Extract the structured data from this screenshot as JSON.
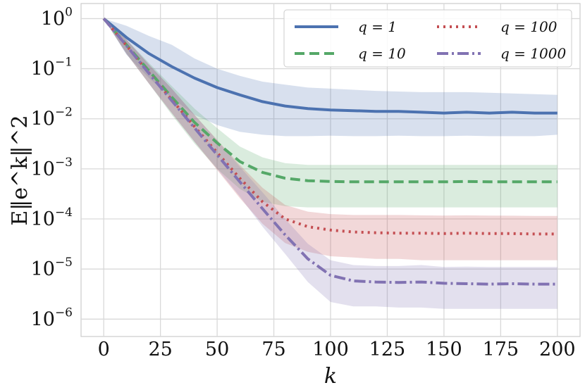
{
  "chart_data": {
    "type": "line",
    "ylabel": "E‖e^k‖^2",
    "xlabel": "k",
    "x_range": [
      -10,
      210
    ],
    "ylim": [
      4.5e-07,
      2.0
    ],
    "yscale": "log",
    "x_ticks": [
      0,
      25,
      50,
      75,
      100,
      125,
      150,
      175,
      200
    ],
    "y_ticks": [
      {
        "value": 1,
        "base": "10",
        "exp": "0"
      },
      {
        "value": 0.1,
        "base": "10",
        "exp": "−1"
      },
      {
        "value": 0.01,
        "base": "10",
        "exp": "−2"
      },
      {
        "value": 0.001,
        "base": "10",
        "exp": "−3"
      },
      {
        "value": 0.0001,
        "base": "10",
        "exp": "−4"
      },
      {
        "value": 1e-05,
        "base": "10",
        "exp": "−5"
      },
      {
        "value": 1e-06,
        "base": "10",
        "exp": "−6"
      }
    ],
    "grid": true,
    "legend_position": "top-right",
    "x": [
      0,
      10,
      20,
      30,
      40,
      50,
      60,
      70,
      80,
      90,
      100,
      110,
      120,
      130,
      140,
      150,
      160,
      170,
      180,
      190,
      200
    ],
    "series": [
      {
        "name": "q = 1",
        "color": "#4c72b0",
        "dash": "solid",
        "mean": [
          1.0,
          0.42,
          0.2,
          0.11,
          0.065,
          0.042,
          0.03,
          0.022,
          0.018,
          0.016,
          0.015,
          0.0145,
          0.014,
          0.014,
          0.0135,
          0.013,
          0.0135,
          0.013,
          0.0135,
          0.013,
          0.013
        ],
        "lower": [
          1.0,
          0.19,
          0.065,
          0.026,
          0.012,
          0.0075,
          0.0055,
          0.0048,
          0.0045,
          0.0045,
          0.0046,
          0.0045,
          0.0045,
          0.0046,
          0.0045,
          0.0045,
          0.0046,
          0.0045,
          0.0045,
          0.0045,
          0.0048
        ],
        "upper": [
          1.0,
          0.72,
          0.45,
          0.3,
          0.16,
          0.1,
          0.072,
          0.055,
          0.048,
          0.042,
          0.04,
          0.038,
          0.036,
          0.035,
          0.034,
          0.034,
          0.034,
          0.033,
          0.032,
          0.031,
          0.03
        ]
      },
      {
        "name": "q = 10",
        "color": "#55a868",
        "dash": "dashed",
        "mean": [
          1.0,
          0.3,
          0.09,
          0.027,
          0.0085,
          0.0033,
          0.0014,
          0.00085,
          0.00065,
          0.00058,
          0.00056,
          0.00055,
          0.00055,
          0.00055,
          0.00055,
          0.00055,
          0.00056,
          0.00055,
          0.00055,
          0.00055,
          0.00055
        ],
        "lower": [
          1.0,
          0.2,
          0.05,
          0.012,
          0.0032,
          0.001,
          0.0004,
          0.00022,
          0.00018,
          0.00017,
          0.00017,
          0.00017,
          0.00017,
          0.00017,
          0.00017,
          0.00017,
          0.00017,
          0.00017,
          0.00017,
          0.00017,
          0.00017
        ],
        "upper": [
          1.0,
          0.38,
          0.13,
          0.045,
          0.016,
          0.0065,
          0.0028,
          0.0017,
          0.0013,
          0.0012,
          0.0012,
          0.0012,
          0.0012,
          0.0012,
          0.0012,
          0.0012,
          0.0012,
          0.0012,
          0.0012,
          0.0012,
          0.0012
        ]
      },
      {
        "name": "q = 100",
        "color": "#c44e52",
        "dash": "dotted",
        "mean": [
          1.0,
          0.29,
          0.082,
          0.024,
          0.007,
          0.0021,
          0.00065,
          0.00022,
          0.0001,
          7e-05,
          6e-05,
          5.5e-05,
          5.3e-05,
          5.2e-05,
          5.2e-05,
          5.1e-05,
          5.2e-05,
          5.1e-05,
          5.1e-05,
          5e-05,
          5e-05
        ],
        "lower": [
          1.0,
          0.2,
          0.05,
          0.013,
          0.0035,
          0.00095,
          0.00026,
          8e-05,
          3.3e-05,
          2.2e-05,
          1.8e-05,
          1.7e-05,
          1.6e-05,
          1.6e-05,
          1.5e-05,
          1.5e-05,
          1.5e-05,
          1.5e-05,
          1.5e-05,
          1.5e-05,
          1.5e-05
        ],
        "upper": [
          1.0,
          0.38,
          0.12,
          0.04,
          0.012,
          0.0038,
          0.0012,
          0.00042,
          0.00019,
          0.00014,
          0.000125,
          0.00012,
          0.00012,
          0.00012,
          0.000118,
          0.000117,
          0.000118,
          0.000117,
          0.000116,
          0.000115,
          0.000115
        ]
      },
      {
        "name": "q = 1000",
        "color": "#8172b2",
        "dash": "dashdot",
        "mean": [
          1.0,
          0.29,
          0.08,
          0.023,
          0.0066,
          0.0019,
          0.00055,
          0.00016,
          4.8e-05,
          1.6e-05,
          7.5e-06,
          5.8e-06,
          5.5e-06,
          5.4e-06,
          5.5e-06,
          5.2e-06,
          5.1e-06,
          5e-06,
          5.1e-06,
          5e-06,
          5e-06
        ],
        "lower": [
          1.0,
          0.2,
          0.05,
          0.013,
          0.0035,
          0.001,
          0.00028,
          7e-05,
          2e-05,
          5.5e-06,
          2.2e-06,
          1.8e-06,
          1.8e-06,
          1.7e-06,
          1.7e-06,
          1.6e-06,
          1.6e-06,
          1.6e-06,
          1.6e-06,
          1.6e-06,
          1.6e-06
        ],
        "upper": [
          1.0,
          0.38,
          0.12,
          0.04,
          0.012,
          0.0037,
          0.0011,
          0.00034,
          0.0001,
          3.2e-05,
          1.5e-05,
          1.2e-05,
          1.15e-05,
          1.15e-05,
          1.2e-05,
          1.1e-05,
          1.12e-05,
          1.1e-05,
          1.1e-05,
          1.1e-05,
          1.1e-05
        ]
      }
    ],
    "legend": [
      {
        "prefix": "q = ",
        "value": "1",
        "series": 0
      },
      {
        "prefix": "q = ",
        "value": "100",
        "series": 2
      },
      {
        "prefix": "q = ",
        "value": "10",
        "series": 1
      },
      {
        "prefix": "q = ",
        "value": "1000",
        "series": 3
      }
    ]
  }
}
